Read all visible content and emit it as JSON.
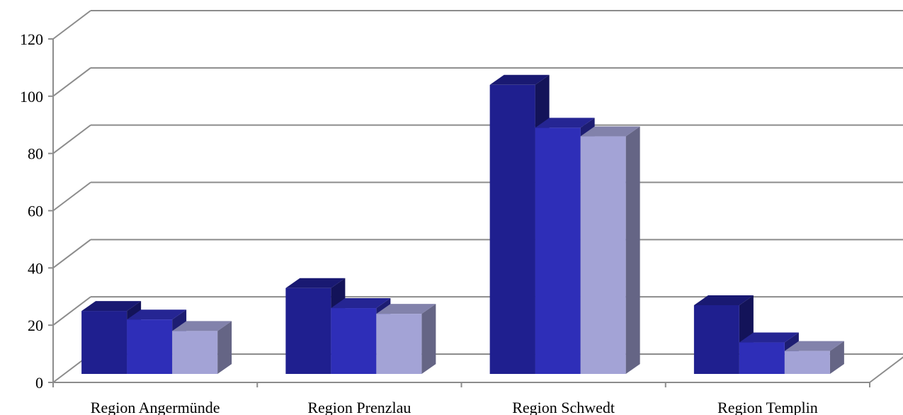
{
  "chart_data": {
    "type": "bar",
    "title": "",
    "xlabel": "",
    "ylabel": "",
    "ylim": [
      0,
      120
    ],
    "yticks": [
      0,
      20,
      40,
      60,
      80,
      100,
      120
    ],
    "grid": true,
    "legend": "none",
    "categories": [
      "Region Angermünde",
      "Region Prenzlau",
      "Region Schwedt",
      "Region Templin"
    ],
    "series": [
      {
        "values": [
          22,
          30,
          101,
          24
        ],
        "color": "#1f1f8f"
      },
      {
        "values": [
          19,
          23,
          86,
          11
        ],
        "color": "#2e2eb8"
      },
      {
        "values": [
          15,
          21,
          83,
          8
        ],
        "color": "#a3a3d6"
      }
    ]
  }
}
